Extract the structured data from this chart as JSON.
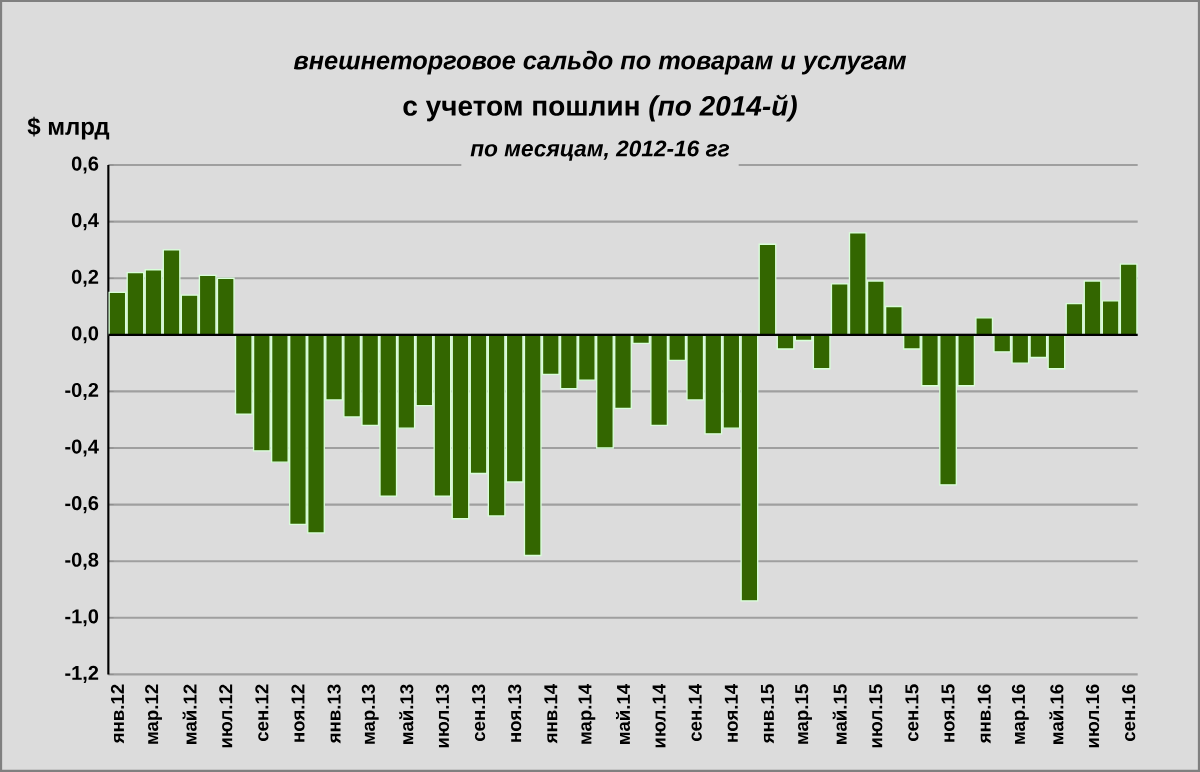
{
  "chart_data": {
    "type": "bar",
    "title": "внешнеторговое  сальдо по товарам и услугам",
    "subtitle": "с учетом пошлин *(по 2014-й)*",
    "annotations": [
      "по месяцам, 2012-16 гг"
    ],
    "ylabel": "$ млрд",
    "categories": [
      "янв.12",
      null,
      "мар.12",
      null,
      "май.12",
      null,
      "июл.12",
      null,
      "сен.12",
      null,
      "ноя.12",
      null,
      "янв.13",
      null,
      "мар.13",
      null,
      "май.13",
      null,
      "июл.13",
      null,
      "сен.13",
      null,
      "ноя.13",
      null,
      "янв.14",
      null,
      "мар.14",
      null,
      "май.14",
      null,
      "июл.14",
      null,
      "сен.14",
      null,
      "ноя.14",
      null,
      "янв.15",
      null,
      "мар.15",
      null,
      "май.15",
      null,
      "июл.15",
      null,
      "сен.15",
      null,
      "ноя.15",
      null,
      "янв.16",
      null,
      "мар.16",
      null,
      "май.16",
      null,
      "июл.16",
      null,
      "сен.16"
    ],
    "values": [
      0.15,
      0.22,
      0.23,
      0.3,
      0.14,
      0.21,
      0.2,
      -0.28,
      -0.41,
      -0.45,
      -0.67,
      -0.7,
      -0.23,
      -0.29,
      -0.32,
      -0.57,
      -0.33,
      -0.25,
      -0.57,
      -0.65,
      -0.49,
      -0.64,
      -0.52,
      -0.78,
      -0.14,
      -0.19,
      -0.16,
      -0.4,
      -0.26,
      -0.03,
      -0.32,
      -0.09,
      -0.23,
      -0.35,
      -0.33,
      -0.94,
      0.32,
      -0.05,
      -0.02,
      -0.12,
      0.18,
      0.36,
      0.19,
      0.1,
      -0.05,
      -0.18,
      -0.53,
      -0.18,
      0.06,
      -0.06,
      -0.1,
      -0.08,
      -0.12,
      0.11,
      0.19,
      0.12,
      0.25
    ],
    "color": "#336600",
    "ylim": [
      -1.2,
      0.6
    ],
    "yticks": [
      {
        "value": -1.2,
        "label": "-1,2"
      },
      {
        "value": -1.0,
        "label": "-1,0"
      },
      {
        "value": -0.8,
        "label": "-0,8"
      },
      {
        "value": -0.6,
        "label": "-0,6"
      },
      {
        "value": -0.4,
        "label": "-0,4"
      },
      {
        "value": -0.2,
        "label": "-0,2"
      },
      {
        "value": 0,
        "label": "0,0"
      },
      {
        "value": 0.2,
        "label": "0,2"
      },
      {
        "value": 0.4,
        "label": "0,4"
      },
      {
        "value": 0.6,
        "label": "0,6"
      }
    ],
    "grid": "y"
  }
}
